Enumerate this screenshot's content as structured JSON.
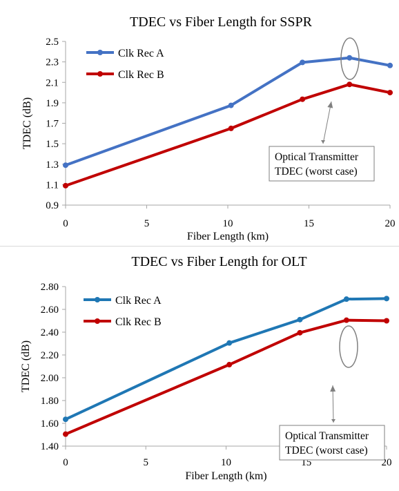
{
  "chart_data": [
    {
      "type": "line",
      "title": "TDEC vs Fiber Length for SSPR",
      "xlabel": "Fiber Length (km)",
      "ylabel": "TDEC (dB)",
      "xlim": [
        0,
        20
      ],
      "ylim": [
        0.9,
        2.5
      ],
      "x_ticks": [
        0,
        5,
        10,
        15,
        20
      ],
      "x_tick_labels": [
        "0",
        "5",
        "10",
        "15",
        "20"
      ],
      "y_ticks": [
        0.9,
        1.1,
        1.3,
        1.5,
        1.7,
        1.9,
        2.1,
        2.3,
        2.5
      ],
      "y_tick_labels": [
        "0.9",
        "1.1",
        "1.3",
        "1.5",
        "1.7",
        "1.9",
        "2.1",
        "2.3",
        "2.5"
      ],
      "grid": "off",
      "legend_position": "top-left",
      "series": [
        {
          "name": "Clk Rec A",
          "color": "#4472C4",
          "x": [
            0,
            10.2,
            14.6,
            17.5,
            20
          ],
          "y": [
            1.29,
            1.875,
            2.295,
            2.34,
            2.265
          ]
        },
        {
          "name": "Clk Rec B",
          "color": "#C00000",
          "x": [
            0,
            10.2,
            14.6,
            17.5,
            20
          ],
          "y": [
            1.09,
            1.65,
            1.935,
            2.08,
            2.0
          ]
        }
      ],
      "annotation": {
        "lines": [
          "Optical Transmitter",
          "TDEC (worst case)"
        ]
      }
    },
    {
      "type": "line",
      "title": "TDEC vs Fiber Length for OLT",
      "xlabel": "Fiber Length (km)",
      "ylabel": "TDEC (dB)",
      "xlim": [
        0,
        20
      ],
      "ylim": [
        1.4,
        2.8
      ],
      "x_ticks": [
        0,
        5,
        10,
        15,
        20
      ],
      "x_tick_labels": [
        "0",
        "5",
        "10",
        "15",
        "20"
      ],
      "y_ticks": [
        1.4,
        1.6,
        1.8,
        2.0,
        2.2,
        2.4,
        2.6,
        2.8
      ],
      "y_tick_labels": [
        "1.40",
        "1.60",
        "1.80",
        "2.00",
        "2.20",
        "2.40",
        "2.60",
        "2.80"
      ],
      "grid": "off",
      "legend_position": "top-left",
      "series": [
        {
          "name": "Clk Rec A",
          "color": "#1F77B4",
          "x": [
            0,
            10.2,
            14.6,
            17.5,
            20
          ],
          "y": [
            1.635,
            2.305,
            2.51,
            2.69,
            2.695
          ]
        },
        {
          "name": "Clk Rec B",
          "color": "#C00000",
          "x": [
            0,
            10.2,
            14.6,
            17.5,
            20
          ],
          "y": [
            1.505,
            2.115,
            2.395,
            2.505,
            2.5
          ]
        }
      ],
      "annotation": {
        "lines": [
          "Optical Transmitter",
          "TDEC (worst case)"
        ]
      }
    }
  ]
}
